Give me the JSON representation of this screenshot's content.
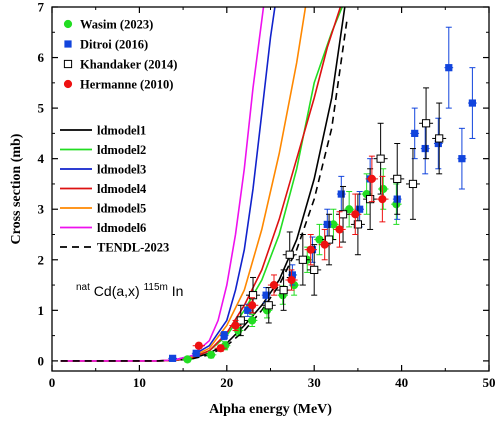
{
  "chart_data": {
    "type": "scatter",
    "xlabel": "Alpha energy (MeV)",
    "ylabel": "Cross section (mb)",
    "xlim": [
      0,
      50
    ],
    "ylim": [
      -0.2,
      7
    ],
    "xticks": [
      0,
      10,
      20,
      30,
      40,
      50
    ],
    "yticks": [
      0,
      1,
      2,
      3,
      4,
      5,
      6,
      7
    ],
    "xtick_labels": [
      "0",
      "10",
      "20",
      "30",
      "40",
      "50"
    ],
    "ytick_labels": [
      "0",
      "1",
      "2",
      "3",
      "4",
      "5",
      "6",
      "7"
    ],
    "annotation": {
      "pre": "nat",
      "mid": "Cd(a,x)",
      "sup": "115m",
      "post": "In"
    },
    "experimental": [
      {
        "name": "Wasim (2023)",
        "color": "#22dd22",
        "marker": "circle",
        "points": [
          {
            "x": 15.5,
            "y": 0.03,
            "xerr": 0.6,
            "yerr": 0.05
          },
          {
            "x": 18.2,
            "y": 0.12,
            "xerr": 0.6,
            "yerr": 0.06
          },
          {
            "x": 19.8,
            "y": 0.3,
            "xerr": 0.6,
            "yerr": 0.08
          },
          {
            "x": 21.3,
            "y": 0.6,
            "xerr": 0.6,
            "yerr": 0.1
          },
          {
            "x": 22.9,
            "y": 0.8,
            "xerr": 0.6,
            "yerr": 0.12
          },
          {
            "x": 24.6,
            "y": 1.0,
            "xerr": 0.6,
            "yerr": 0.15
          },
          {
            "x": 26.4,
            "y": 1.3,
            "xerr": 0.6,
            "yerr": 0.18
          },
          {
            "x": 27.7,
            "y": 1.5,
            "xerr": 0.6,
            "yerr": 0.2
          },
          {
            "x": 29.2,
            "y": 2.0,
            "xerr": 0.6,
            "yerr": 0.25
          },
          {
            "x": 30.6,
            "y": 2.4,
            "xerr": 0.6,
            "yerr": 0.3
          },
          {
            "x": 32.2,
            "y": 2.7,
            "xerr": 0.6,
            "yerr": 0.3
          },
          {
            "x": 34.0,
            "y": 3.0,
            "xerr": 0.6,
            "yerr": 0.35
          },
          {
            "x": 36.0,
            "y": 3.3,
            "xerr": 0.6,
            "yerr": 0.4
          },
          {
            "x": 37.9,
            "y": 3.4,
            "xerr": 0.6,
            "yerr": 0.4
          },
          {
            "x": 39.4,
            "y": 3.1,
            "xerr": 0.6,
            "yerr": 0.4
          }
        ]
      },
      {
        "name": "Ditroi (2016)",
        "color": "#1144dd",
        "marker": "square",
        "points": [
          {
            "x": 13.8,
            "y": 0.05,
            "xerr": 0.5,
            "yerr": 0.03
          },
          {
            "x": 16.5,
            "y": 0.15,
            "xerr": 0.5,
            "yerr": 0.05
          },
          {
            "x": 19.7,
            "y": 0.5,
            "xerr": 0.5,
            "yerr": 0.08
          },
          {
            "x": 22.4,
            "y": 1.0,
            "xerr": 0.5,
            "yerr": 0.12
          },
          {
            "x": 24.5,
            "y": 1.3,
            "xerr": 0.5,
            "yerr": 0.15
          },
          {
            "x": 27.5,
            "y": 1.7,
            "xerr": 0.5,
            "yerr": 0.2
          },
          {
            "x": 29.8,
            "y": 2.2,
            "xerr": 0.5,
            "yerr": 0.25
          },
          {
            "x": 31.5,
            "y": 2.7,
            "xerr": 0.5,
            "yerr": 0.3
          },
          {
            "x": 33.1,
            "y": 3.3,
            "xerr": 0.5,
            "yerr": 0.35
          },
          {
            "x": 35.2,
            "y": 3.0,
            "xerr": 0.5,
            "yerr": 0.35
          },
          {
            "x": 36.4,
            "y": 3.6,
            "xerr": 0.5,
            "yerr": 0.4
          },
          {
            "x": 39.5,
            "y": 3.2,
            "xerr": 0.5,
            "yerr": 0.4
          },
          {
            "x": 41.5,
            "y": 4.5,
            "xerr": 0.5,
            "yerr": 0.5
          },
          {
            "x": 42.7,
            "y": 4.2,
            "xerr": 0.5,
            "yerr": 0.5
          },
          {
            "x": 44.2,
            "y": 4.3,
            "xerr": 0.5,
            "yerr": 0.5
          },
          {
            "x": 45.4,
            "y": 5.8,
            "xerr": 0.5,
            "yerr": 0.8
          },
          {
            "x": 46.9,
            "y": 4.0,
            "xerr": 0.5,
            "yerr": 0.6
          },
          {
            "x": 48.1,
            "y": 5.1,
            "xerr": 0.5,
            "yerr": 0.7
          }
        ]
      },
      {
        "name": "Khandaker (2014)",
        "color": "#000000",
        "marker": "square-open",
        "points": [
          {
            "x": 21.6,
            "y": 0.8,
            "xerr": 0.8,
            "yerr": 0.3
          },
          {
            "x": 23.0,
            "y": 1.3,
            "xerr": 0.8,
            "yerr": 0.35
          },
          {
            "x": 24.8,
            "y": 1.1,
            "xerr": 0.8,
            "yerr": 0.35
          },
          {
            "x": 26.5,
            "y": 1.4,
            "xerr": 0.8,
            "yerr": 0.4
          },
          {
            "x": 27.2,
            "y": 2.1,
            "xerr": 0.8,
            "yerr": 0.45
          },
          {
            "x": 28.7,
            "y": 2.0,
            "xerr": 0.8,
            "yerr": 0.5
          },
          {
            "x": 30.0,
            "y": 1.8,
            "xerr": 0.8,
            "yerr": 0.5
          },
          {
            "x": 31.7,
            "y": 2.4,
            "xerr": 0.8,
            "yerr": 0.5
          },
          {
            "x": 33.3,
            "y": 2.9,
            "xerr": 0.8,
            "yerr": 0.55
          },
          {
            "x": 35.0,
            "y": 2.7,
            "xerr": 0.8,
            "yerr": 0.6
          },
          {
            "x": 36.4,
            "y": 3.2,
            "xerr": 0.8,
            "yerr": 0.6
          },
          {
            "x": 37.6,
            "y": 4.0,
            "xerr": 0.8,
            "yerr": 0.7
          },
          {
            "x": 39.5,
            "y": 3.6,
            "xerr": 0.8,
            "yerr": 0.7
          },
          {
            "x": 41.3,
            "y": 3.5,
            "xerr": 0.8,
            "yerr": 0.7
          },
          {
            "x": 42.8,
            "y": 4.7,
            "xerr": 0.8,
            "yerr": 0.7
          },
          {
            "x": 44.3,
            "y": 4.4,
            "xerr": 0.8,
            "yerr": 0.7
          }
        ]
      },
      {
        "name": "Hermanne (2010)",
        "color": "#ee1111",
        "marker": "circle",
        "points": [
          {
            "x": 16.8,
            "y": 0.3,
            "xerr": 0.7,
            "yerr": 0.05
          },
          {
            "x": 19.3,
            "y": 0.25,
            "xerr": 0.7,
            "yerr": 0.06
          },
          {
            "x": 21.0,
            "y": 0.7,
            "xerr": 0.7,
            "yerr": 0.1
          },
          {
            "x": 22.9,
            "y": 1.1,
            "xerr": 0.7,
            "yerr": 0.15
          },
          {
            "x": 25.4,
            "y": 1.5,
            "xerr": 0.7,
            "yerr": 0.2
          },
          {
            "x": 27.4,
            "y": 1.6,
            "xerr": 0.7,
            "yerr": 0.2
          },
          {
            "x": 29.6,
            "y": 2.2,
            "xerr": 0.7,
            "yerr": 0.3
          },
          {
            "x": 31.2,
            "y": 2.3,
            "xerr": 0.7,
            "yerr": 0.3
          },
          {
            "x": 32.9,
            "y": 2.6,
            "xerr": 0.7,
            "yerr": 0.35
          },
          {
            "x": 34.7,
            "y": 2.9,
            "xerr": 0.7,
            "yerr": 0.4
          },
          {
            "x": 36.6,
            "y": 3.6,
            "xerr": 0.7,
            "yerr": 0.45
          },
          {
            "x": 37.8,
            "y": 3.2,
            "xerr": 0.7,
            "yerr": 0.45
          }
        ]
      }
    ],
    "models": [
      {
        "name": "ldmodel1",
        "color": "#000000",
        "dash": "",
        "x": [
          1,
          12,
          14,
          16,
          18,
          20,
          22,
          24,
          26,
          28,
          30,
          32,
          33.5
        ],
        "y": [
          0,
          0,
          0.01,
          0.05,
          0.15,
          0.35,
          0.7,
          1.1,
          1.6,
          2.4,
          3.6,
          5.2,
          7.0
        ]
      },
      {
        "name": "ldmodel2",
        "color": "#22dd22",
        "dash": "",
        "x": [
          1,
          12,
          14,
          16,
          18,
          20,
          22,
          24,
          26,
          28,
          30,
          32,
          33.2
        ],
        "y": [
          0,
          0,
          0.01,
          0.06,
          0.2,
          0.5,
          1.0,
          1.6,
          2.5,
          3.8,
          5.5,
          6.5,
          7.0
        ]
      },
      {
        "name": "ldmodel3",
        "color": "#1122cc",
        "dash": "",
        "x": [
          1,
          12,
          14,
          16,
          18,
          20,
          21,
          22,
          23,
          24,
          25,
          25.5
        ],
        "y": [
          0,
          0,
          0.02,
          0.1,
          0.3,
          0.8,
          1.4,
          2.2,
          3.4,
          4.9,
          6.4,
          7.0
        ]
      },
      {
        "name": "ldmodel4",
        "color": "#dd1111",
        "dash": "",
        "x": [
          1,
          12,
          14,
          16,
          18,
          20,
          22,
          24,
          26,
          28,
          30,
          31.5,
          33.0
        ],
        "y": [
          0,
          0,
          0.01,
          0.06,
          0.2,
          0.55,
          1.1,
          1.8,
          2.8,
          4.0,
          5.2,
          6.2,
          7.0
        ]
      },
      {
        "name": "ldmodel5",
        "color": "#ff8800",
        "dash": "",
        "x": [
          1,
          12,
          14,
          16,
          18,
          20,
          22,
          24,
          26,
          28,
          29.0
        ],
        "y": [
          0,
          0,
          0.02,
          0.08,
          0.25,
          0.7,
          1.4,
          2.6,
          4.1,
          5.9,
          7.0
        ]
      },
      {
        "name": "ldmodel6",
        "color": "#ee11ee",
        "dash": "",
        "x": [
          1,
          12,
          14,
          16,
          18,
          19,
          20,
          21,
          22,
          23,
          24.2
        ],
        "y": [
          0,
          0,
          0.02,
          0.1,
          0.4,
          0.8,
          1.5,
          2.5,
          3.8,
          5.4,
          7.0
        ]
      },
      {
        "name": "TENDL-2023",
        "color": "#000000",
        "dash": "7,5",
        "x": [
          1,
          12,
          14,
          16,
          18,
          20,
          22,
          24,
          26,
          28,
          30,
          32,
          33.8
        ],
        "y": [
          0,
          0,
          0.01,
          0.04,
          0.12,
          0.3,
          0.6,
          1.0,
          1.5,
          2.2,
          3.2,
          4.6,
          6.8
        ]
      }
    ]
  }
}
